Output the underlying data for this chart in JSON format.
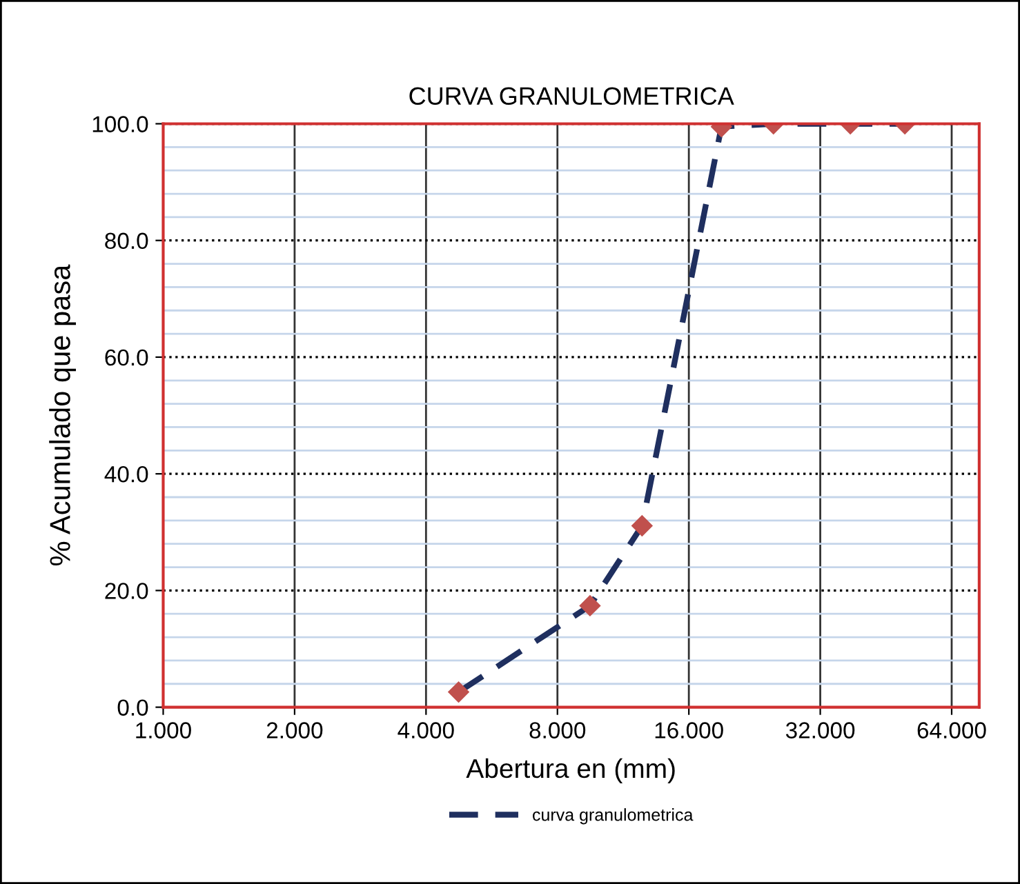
{
  "chart_data": {
    "type": "line",
    "title": "CURVA GRANULOMETRICA",
    "xlabel": "Abertura en (mm)",
    "ylabel": "% Acumulado que pasa",
    "x": [
      4.75,
      9.5,
      12.5,
      19,
      25,
      37.5,
      50
    ],
    "series": [
      {
        "name": "curva granulometrica",
        "color": "#1f2f5f",
        "colors": [
          "#c0504d",
          "#c0504d",
          "#c0504d",
          "#c0504d",
          "#c0504d",
          "#c0504d",
          "#c0504d"
        ],
        "values": [
          2.6,
          17.4,
          31.1,
          99.5,
          100,
          100,
          100
        ]
      }
    ],
    "log": "x",
    "xlim": [
      1,
      74
    ],
    "xticks": [
      {
        "value": 1,
        "label": "1.000"
      },
      {
        "value": 2,
        "label": "2.000"
      },
      {
        "value": 4,
        "label": "4.000"
      },
      {
        "value": 8,
        "label": "8.000"
      },
      {
        "value": 16,
        "label": "16.000"
      },
      {
        "value": 32,
        "label": "32.000"
      },
      {
        "value": 64,
        "label": "64.000"
      }
    ],
    "ylim": [
      0,
      100
    ],
    "yticks": [
      {
        "value": 0,
        "label": "0.0"
      },
      {
        "value": 4,
        "label": null
      },
      {
        "value": 8,
        "label": null
      },
      {
        "value": 12,
        "label": null
      },
      {
        "value": 16,
        "label": null
      },
      {
        "value": 20,
        "label": "20.0"
      },
      {
        "value": 24,
        "label": null
      },
      {
        "value": 28,
        "label": null
      },
      {
        "value": 32,
        "label": null
      },
      {
        "value": 36,
        "label": null
      },
      {
        "value": 40,
        "label": "40.0"
      },
      {
        "value": 44,
        "label": null
      },
      {
        "value": 48,
        "label": null
      },
      {
        "value": 52,
        "label": null
      },
      {
        "value": 56,
        "label": null
      },
      {
        "value": 60,
        "label": "60.0"
      },
      {
        "value": 64,
        "label": null
      },
      {
        "value": 68,
        "label": null
      },
      {
        "value": 72,
        "label": null
      },
      {
        "value": 76,
        "label": null
      },
      {
        "value": 80,
        "label": "80.0"
      },
      {
        "value": 84,
        "label": null
      },
      {
        "value": 88,
        "label": null
      },
      {
        "value": 92,
        "label": null
      },
      {
        "value": 96,
        "label": null
      },
      {
        "value": 100,
        "label": "100.0"
      }
    ],
    "grid": true,
    "legend": "bottom",
    "marker": "diamond",
    "line_style": "dashed"
  }
}
